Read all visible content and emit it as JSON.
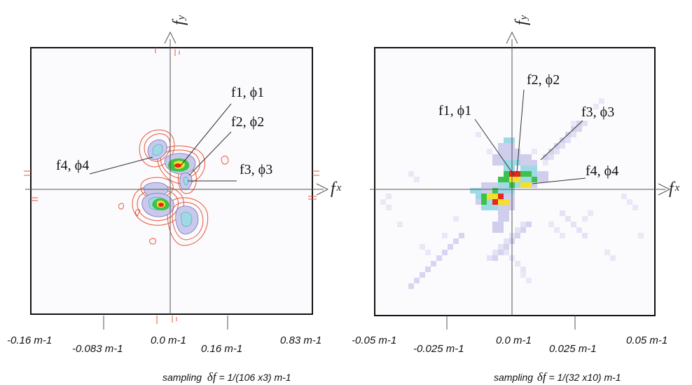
{
  "panels": [
    {
      "id": "left",
      "axis_x_symbol": "f",
      "axis_x_sub": "x",
      "axis_y_symbol": "f",
      "axis_y_sub": "y",
      "ticks": [
        "-0.16 m-1",
        "-0.083 m-1",
        "0.0 m-1",
        "0.16 m-1",
        "0.83 m-1"
      ],
      "annotations": [
        {
          "f": "f",
          "idx": "1",
          "phi": "ϕ",
          "pidx": "1",
          "text": "f1, ϕ1"
        },
        {
          "f": "f",
          "idx": "2",
          "phi": "ϕ",
          "pidx": "2",
          "text": "f2, ϕ2"
        },
        {
          "f": "f",
          "idx": "3",
          "phi": "ϕ",
          "pidx": "3",
          "text": "f3, ϕ3"
        },
        {
          "f": "f",
          "idx": "4",
          "phi": "ϕ",
          "pidx": "4",
          "text": "f4, ϕ4"
        }
      ],
      "caption": {
        "pre": "sampling ",
        "sym": "δf",
        "post": " = 1/(106 x3) m-1"
      }
    },
    {
      "id": "right",
      "axis_x_symbol": "f",
      "axis_x_sub": "x",
      "axis_y_symbol": "f",
      "axis_y_sub": "y",
      "ticks": [
        "-0.05 m-1",
        "-0.025 m-1",
        "0.0 m-1",
        "0.025 m-1",
        "0.05 m-1"
      ],
      "annotations": [
        {
          "f": "f",
          "idx": "1",
          "phi": "ϕ",
          "pidx": "1",
          "text": "f1, ϕ1"
        },
        {
          "f": "f",
          "idx": "2",
          "phi": "ϕ",
          "pidx": "2",
          "text": "f2, ϕ2"
        },
        {
          "f": "f",
          "idx": "3",
          "phi": "ϕ",
          "pidx": "3",
          "text": "f3, ϕ3"
        },
        {
          "f": "f",
          "idx": "4",
          "phi": "ϕ",
          "pidx": "4",
          "text": "f4, ϕ4"
        }
      ],
      "caption": {
        "pre": "sampling ",
        "sym": "δf",
        "post": " = 1/(32 x10) m-1"
      }
    }
  ],
  "colors": {
    "contour_outer": "#e8553a",
    "fill_lavender": "#c9c9ec",
    "fill_cyan": "#9fd9e6",
    "fill_green": "#3cc24a",
    "fill_yellow": "#f3e02a",
    "fill_red": "#e6261f",
    "pixel_light": "#c8c6ea"
  }
}
